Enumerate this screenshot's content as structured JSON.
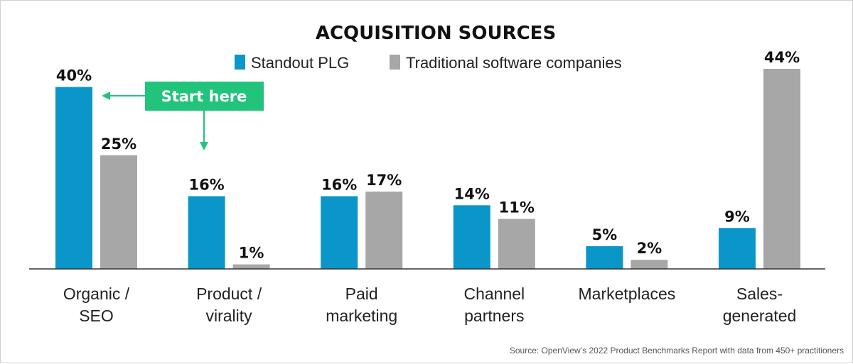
{
  "chart_data": {
    "type": "bar",
    "title": "ACQUISITION SOURCES",
    "categories": [
      [
        "Organic /",
        "SEO"
      ],
      [
        "Product /",
        "virality"
      ],
      [
        "Paid",
        "marketing"
      ],
      [
        "Channel",
        "partners"
      ],
      [
        "Marketplaces"
      ],
      [
        "Sales-",
        "generated"
      ]
    ],
    "series": [
      {
        "name": "Standout PLG",
        "values": [
          40,
          16,
          16,
          14,
          5,
          9
        ],
        "labels": [
          "40%",
          "16%",
          "16%",
          "14%",
          "5%",
          "9%"
        ],
        "color": "#0a96c8"
      },
      {
        "name": "Traditional software companies",
        "values": [
          25,
          1,
          17,
          11,
          2,
          44
        ],
        "labels": [
          "25%",
          "1%",
          "17%",
          "11%",
          "2%",
          "44%"
        ],
        "color": "#a7a7a7"
      }
    ],
    "ylim": [
      0,
      44
    ],
    "grid": false,
    "legend_position": "top-center",
    "annotation": {
      "text": "Start here",
      "color": "#21c47a",
      "points_to": [
        "Standout PLG: Organic / SEO",
        "Product / virality"
      ]
    }
  },
  "source": "Source: OpenView’s 2022 Product Benchmarks Report with data from 450+ practitioners"
}
